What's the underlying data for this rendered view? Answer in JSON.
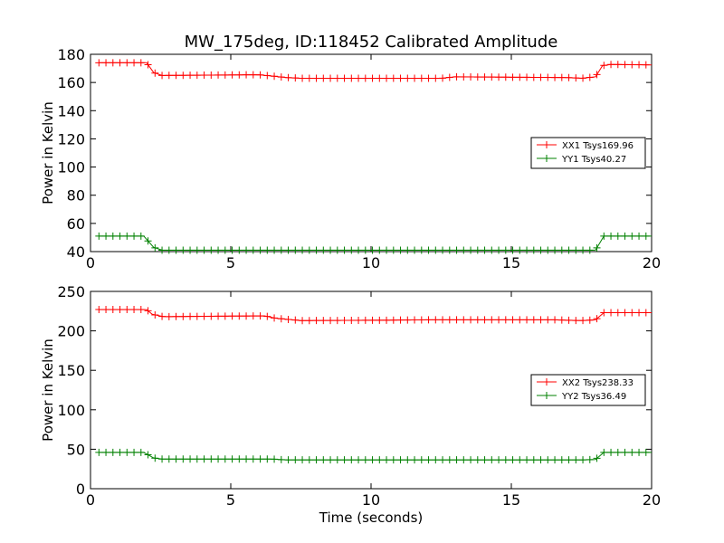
{
  "title": "MW_175deg, ID:118452 Calibrated Amplitude",
  "xlabel": "Time (seconds)",
  "colors": {
    "red": "#ff0000",
    "green": "#008000"
  },
  "chart_data": [
    {
      "type": "line",
      "ylabel": "Power in Kelvin",
      "xlim": [
        0,
        20
      ],
      "ylim": [
        40,
        180
      ],
      "xticks": [
        0,
        5,
        10,
        15,
        20
      ],
      "yticks": [
        40,
        60,
        80,
        100,
        120,
        140,
        160,
        180
      ],
      "legend_position": "center-right",
      "series": [
        {
          "name": "XX1 Tsys169.96",
          "color": "#ff0000",
          "points": [
            [
              0.3,
              174
            ],
            [
              2.0,
              174
            ],
            [
              2.25,
              167
            ],
            [
              2.55,
              165
            ],
            [
              6.0,
              165.5
            ],
            [
              6.5,
              164.5
            ],
            [
              7.0,
              163.5
            ],
            [
              7.5,
              163
            ],
            [
              12.5,
              163
            ],
            [
              13.0,
              164
            ],
            [
              17.0,
              163.5
            ],
            [
              17.5,
              163
            ],
            [
              18.0,
              164
            ],
            [
              18.25,
              172
            ],
            [
              18.55,
              172.8
            ],
            [
              20.0,
              172.5
            ]
          ]
        },
        {
          "name": "YY1 Tsys40.27",
          "color": "#008000",
          "points": [
            [
              0.3,
              51
            ],
            [
              1.9,
              51
            ],
            [
              2.25,
              43
            ],
            [
              2.55,
              41
            ],
            [
              18.0,
              41
            ],
            [
              18.3,
              51
            ],
            [
              20.0,
              51
            ]
          ]
        }
      ]
    },
    {
      "type": "line",
      "ylabel": "Power in Kelvin",
      "xlabel": "Time (seconds)",
      "xlim": [
        0,
        20
      ],
      "ylim": [
        0,
        250
      ],
      "xticks": [
        0,
        5,
        10,
        15,
        20
      ],
      "yticks": [
        0,
        50,
        100,
        150,
        200,
        250
      ],
      "legend_position": "center-right",
      "series": [
        {
          "name": "XX2 Tsys238.33",
          "color": "#ff0000",
          "points": [
            [
              0.3,
              227
            ],
            [
              2.0,
              227
            ],
            [
              2.2,
              221
            ],
            [
              2.6,
              218
            ],
            [
              6.2,
              219
            ],
            [
              6.6,
              216
            ],
            [
              7.2,
              214
            ],
            [
              7.5,
              213
            ],
            [
              10.5,
              213.5
            ],
            [
              12.0,
              214
            ],
            [
              16.5,
              214
            ],
            [
              17.5,
              213
            ],
            [
              18.0,
              214
            ],
            [
              18.3,
              223
            ],
            [
              20.0,
              223
            ]
          ]
        },
        {
          "name": "YY2 Tsys36.49",
          "color": "#008000",
          "points": [
            [
              0.3,
              46
            ],
            [
              1.9,
              46
            ],
            [
              2.25,
              39
            ],
            [
              2.55,
              37.5
            ],
            [
              6.5,
              37.5
            ],
            [
              7.0,
              36.5
            ],
            [
              17.5,
              36.5
            ],
            [
              18.0,
              37
            ],
            [
              18.3,
              46
            ],
            [
              20.0,
              46
            ]
          ]
        }
      ]
    }
  ]
}
